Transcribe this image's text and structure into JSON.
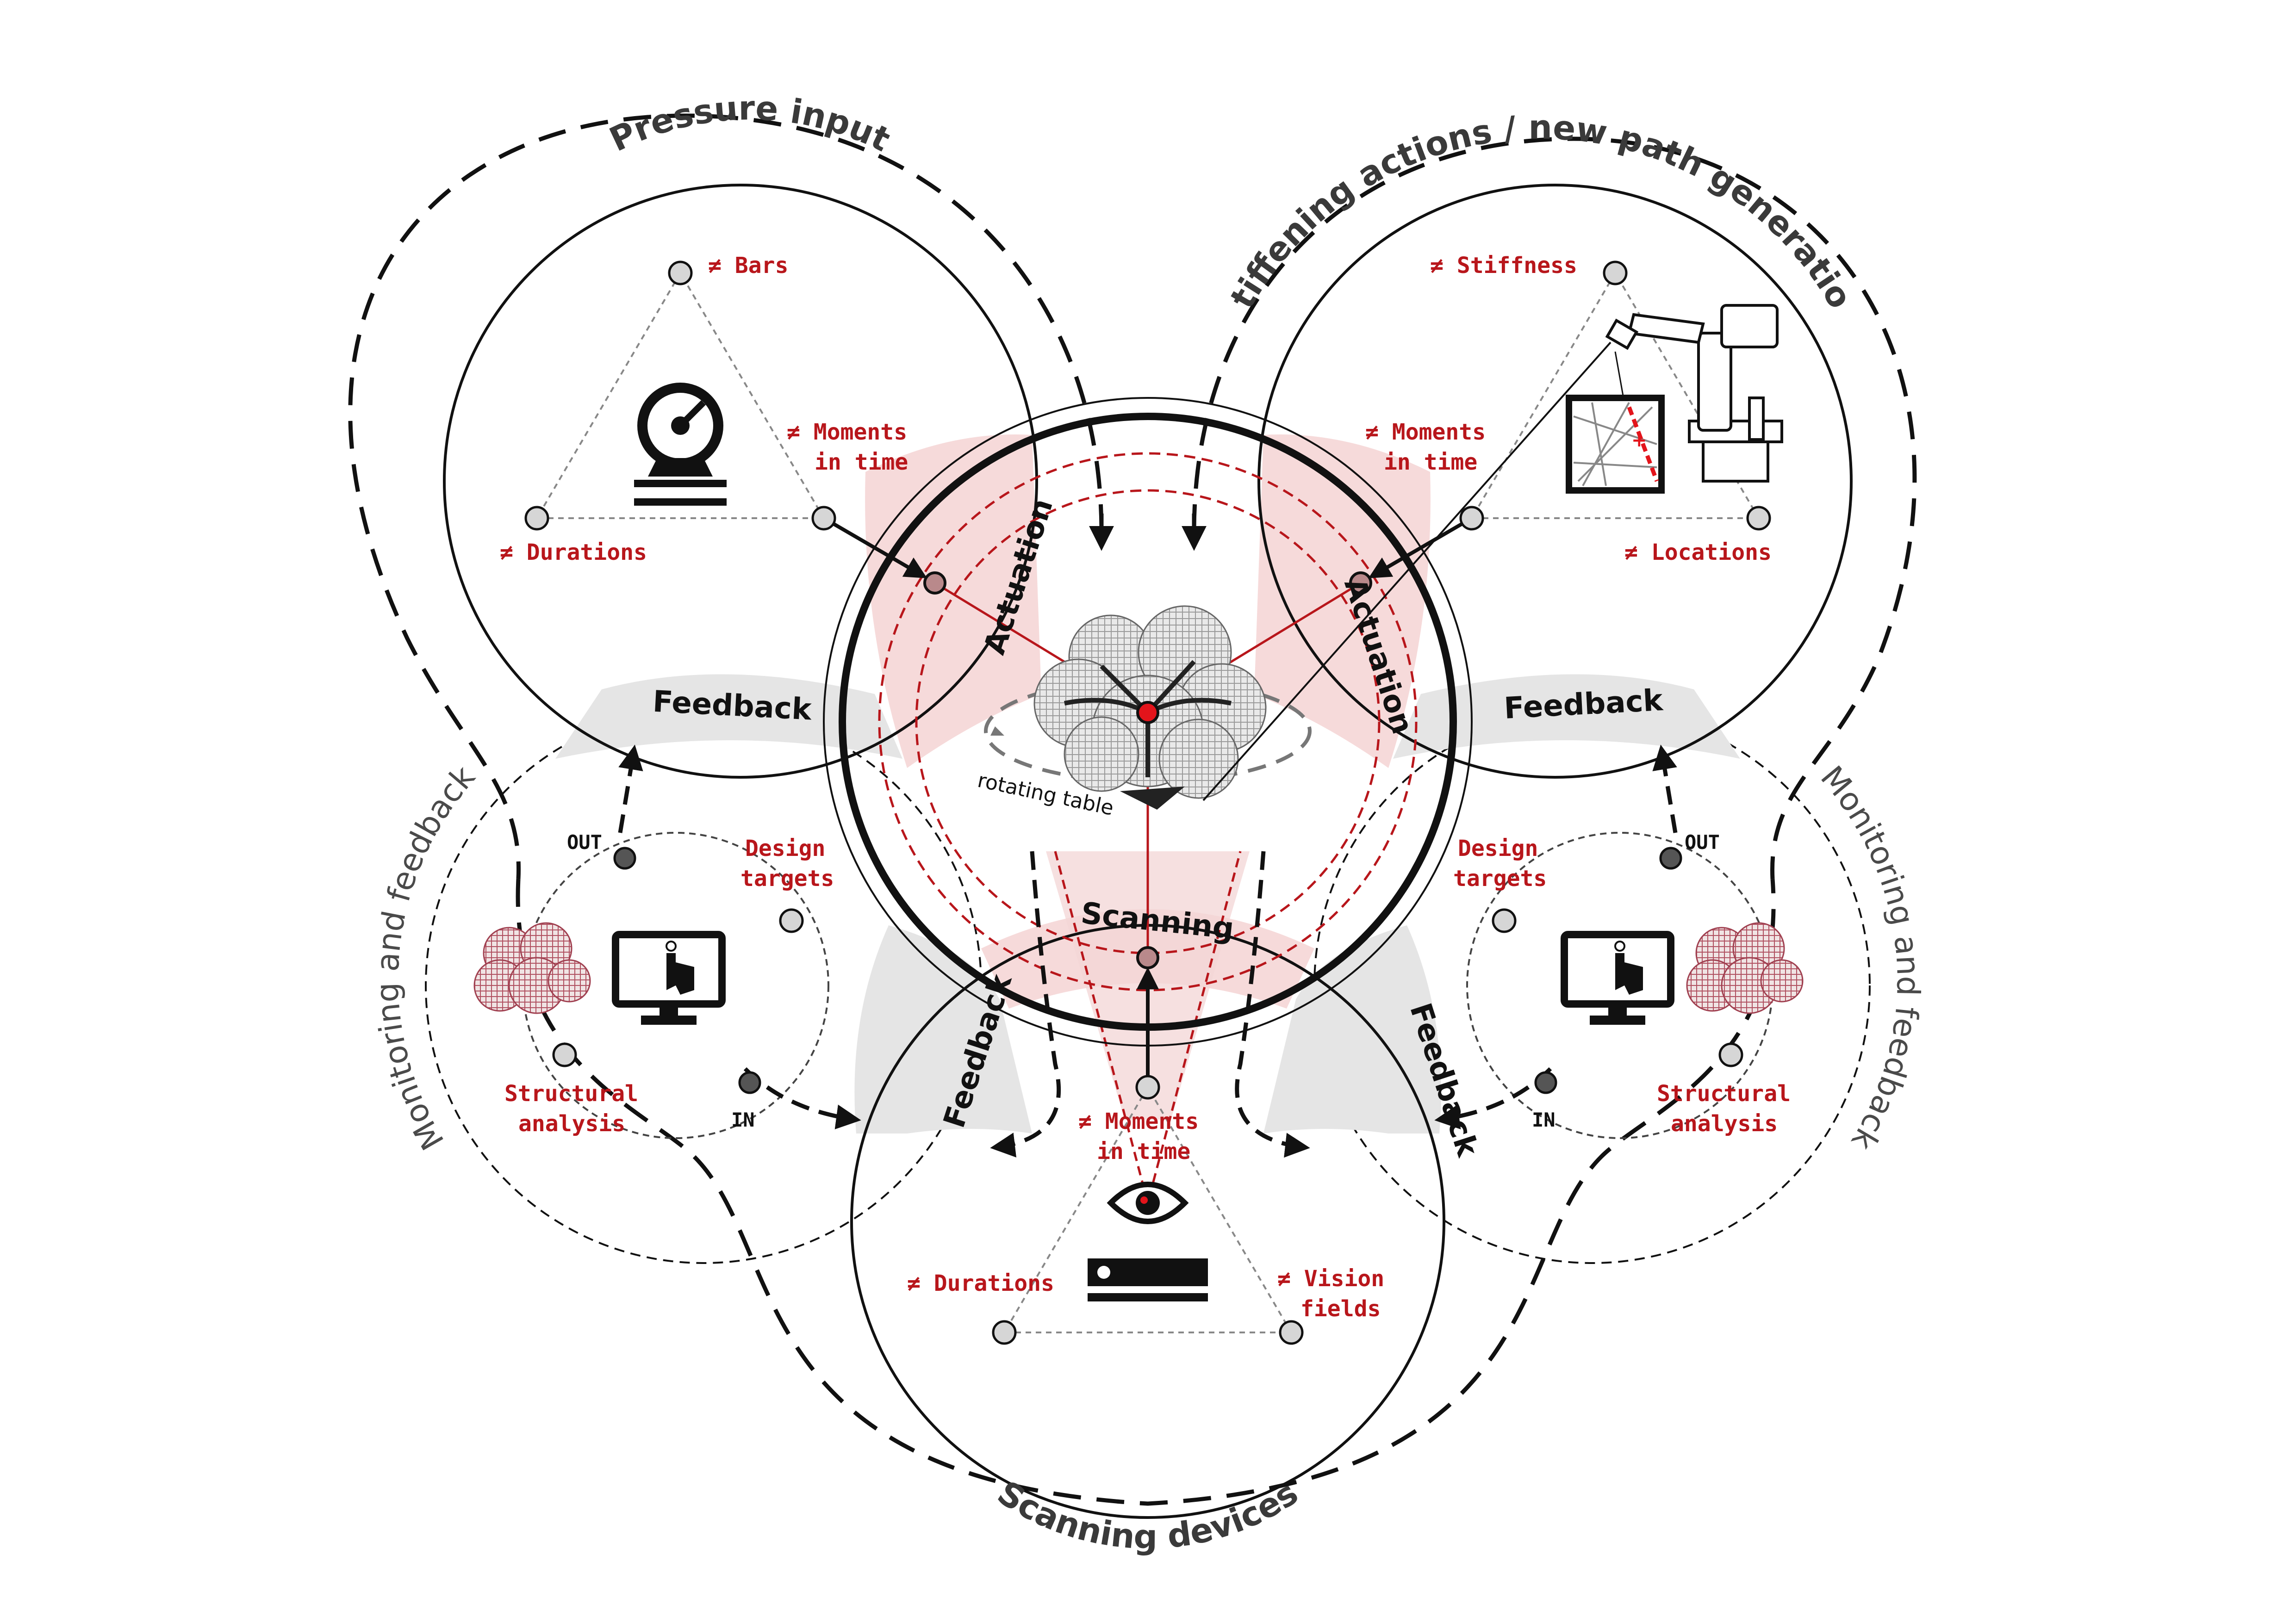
{
  "colors": {
    "accent_red": "#b8161b",
    "node_red": "#e3141b",
    "band_pink": "#f6dada",
    "band_grey": "#e5e5e5",
    "line_black": "#111111"
  },
  "arc_titles": {
    "pressure_input": "Pressure input",
    "stiffening": "Stiffening actions / new path generation",
    "scanning_devices": "Scanning devices",
    "monitoring_left": "Monitoring and feedback",
    "monitoring_right": "Monitoring and feedback"
  },
  "band_labels": {
    "actuation_left": "Actuation",
    "actuation_right": "Actuation",
    "scanning": "Scanning",
    "feedback_top_left": "Feedback",
    "feedback_top_right": "Feedback",
    "feedback_bottom_left": "Feedback",
    "feedback_bottom_right": "Feedback"
  },
  "pressure": {
    "bars": "≠ Bars",
    "moments_1": "≠ Moments",
    "moments_2": "in time",
    "durations": "≠ Durations"
  },
  "stiffening": {
    "stiffness": "≠ Stiffness",
    "moments_1": "≠ Moments",
    "moments_2": "in time",
    "locations": "≠ Locations"
  },
  "scanning": {
    "moments_1": "≠ Moments",
    "moments_2": "in time",
    "durations": "≠ Durations",
    "vision_1": "≠ Vision",
    "vision_2": "fields"
  },
  "monitor_left": {
    "design_1": "Design",
    "design_2": "targets",
    "structural_1": "Structural",
    "structural_2": "analysis",
    "out": "OUT",
    "in": "IN"
  },
  "monitor_right": {
    "design_1": "Design",
    "design_2": "targets",
    "structural_1": "Structural",
    "structural_2": "analysis",
    "out": "OUT",
    "in": "IN"
  },
  "center": {
    "rotating_table": "rotating table"
  },
  "icons": [
    "pressure-gauge-icon",
    "robot-arm-icon",
    "stiffness-grid-icon",
    "computer-touch-icon",
    "eye-icon",
    "scanner-device-icon",
    "structural-mesh-icon"
  ]
}
